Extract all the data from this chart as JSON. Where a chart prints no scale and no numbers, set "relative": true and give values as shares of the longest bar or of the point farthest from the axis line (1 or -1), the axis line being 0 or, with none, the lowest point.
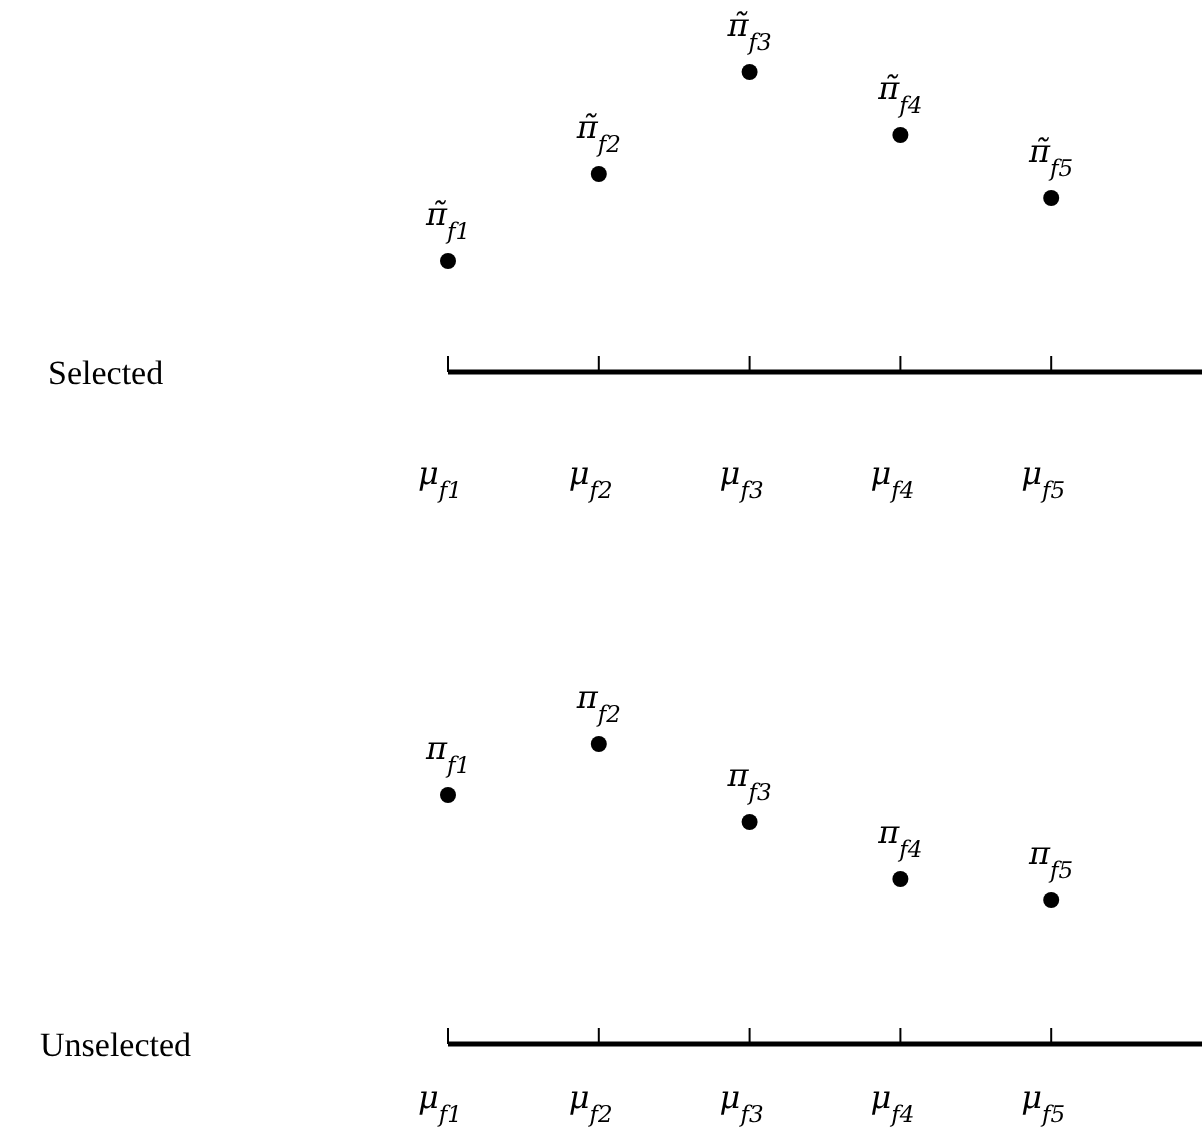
{
  "chart_data": [
    {
      "type": "scatter",
      "ylabel": "Selected",
      "categories": [
        "μ$_{f1}$",
        "μ$_{f2}$",
        "μ$_{f3}$",
        "μ$_{f4}$",
        "μ$_{f5}$"
      ],
      "values": [
        0.37,
        0.66,
        1,
        0.79,
        0.58
      ],
      "relative": true,
      "color": "#000000",
      "marker": "circle",
      "annotations": [
        {
          "text": "π̃$_{f1}$",
          "x": "μ$_{f1}$",
          "y": 0.37
        },
        {
          "text": "π̃$_{f2}$",
          "x": "μ$_{f2}$",
          "y": 0.66
        },
        {
          "text": "π̃$_{f3}$",
          "x": "μ$_{f3}$",
          "y": 1
        },
        {
          "text": "π̃$_{f4}$",
          "x": "μ$_{f4}$",
          "y": 0.79
        },
        {
          "text": "π̃$_{f5}$",
          "x": "μ$_{f5}$",
          "y": 0.58
        }
      ]
    },
    {
      "type": "scatter",
      "ylabel": "Unselected",
      "categories": [
        "μ$_{f1}$",
        "μ$_{f2}$",
        "μ$_{f3}$",
        "μ$_{f4}$",
        "μ$_{f5}$"
      ],
      "values": [
        0.83,
        1,
        0.74,
        0.55,
        0.48
      ],
      "relative": true,
      "color": "#000000",
      "marker": "circle",
      "annotations": [
        {
          "text": "π$_{f1}$",
          "x": "μ$_{f1}$",
          "y": 0.83
        },
        {
          "text": "π$_{f2}$",
          "x": "μ$_{f2}$",
          "y": 1
        },
        {
          "text": "π$_{f3}$",
          "x": "μ$_{f3}$",
          "y": 0.74
        },
        {
          "text": "π$_{f4}$",
          "x": "μ$_{f4}$",
          "y": 0.55
        },
        {
          "text": "π$_{f5}$",
          "x": "μ$_{f5}$",
          "y": 0.48
        }
      ]
    }
  ]
}
